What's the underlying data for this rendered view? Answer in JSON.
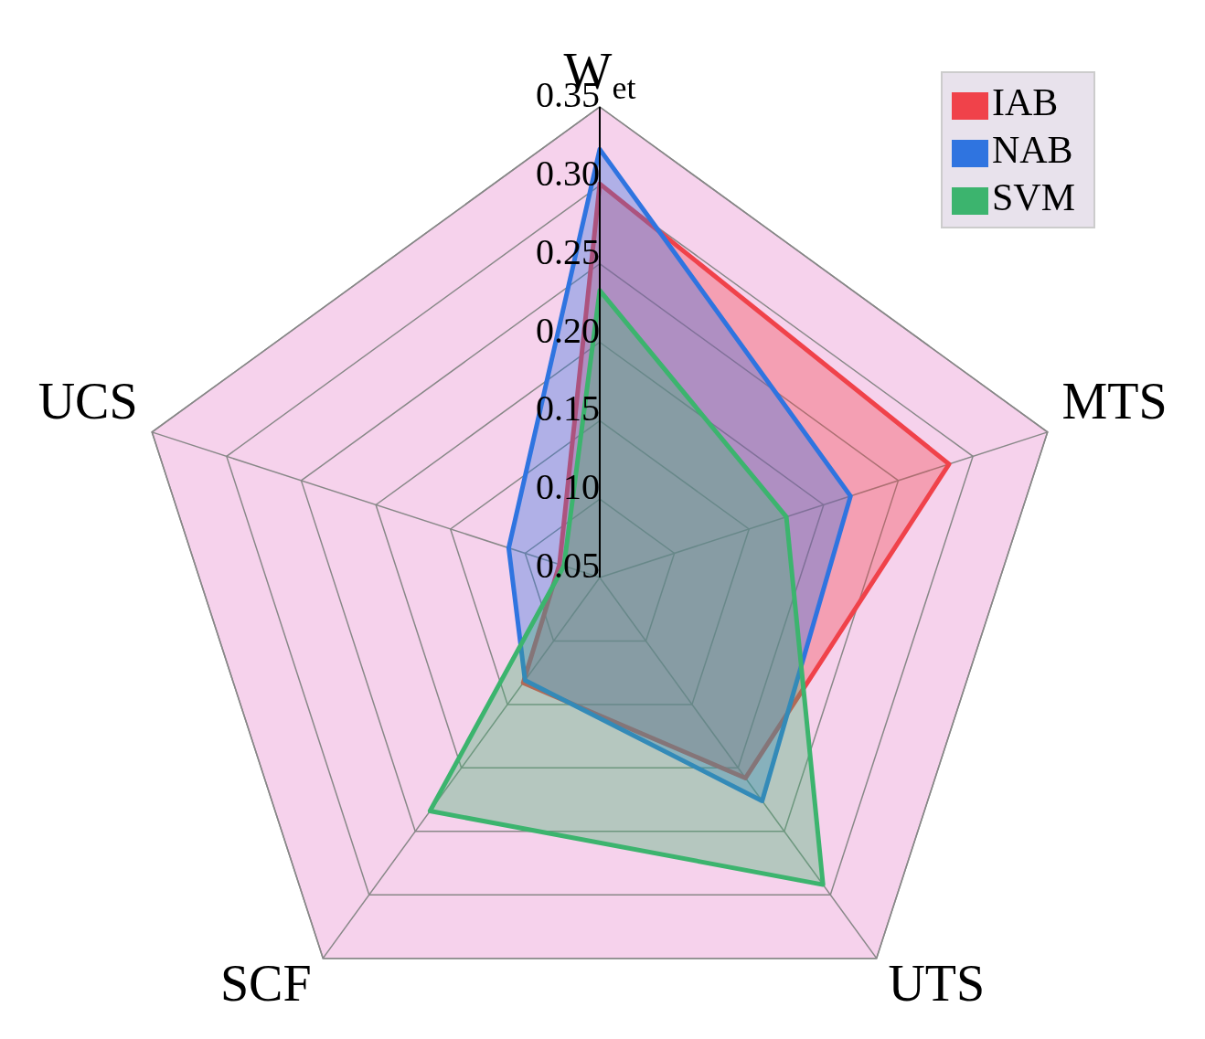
{
  "chart_data": {
    "type": "radar",
    "categories": [
      "W$_{et}$",
      "MTS",
      "UTS",
      "SCF",
      "UCS"
    ],
    "series": [
      {
        "name": "IAB",
        "color": "#f0424a",
        "values": [
          0.301,
          0.284,
          0.208,
          0.133,
          0.077
        ]
      },
      {
        "name": "NAB",
        "color": "#2f74e0",
        "values": [
          0.323,
          0.218,
          0.226,
          0.131,
          0.111
        ]
      },
      {
        "name": "SVM",
        "color": "#3cb46e",
        "values": [
          0.233,
          0.175,
          0.292,
          0.234,
          0.074
        ]
      }
    ],
    "ylim": [
      0.05,
      0.35
    ],
    "yticks": [
      {
        "value": 0.05,
        "label": "0.05"
      },
      {
        "value": 0.1,
        "label": "0.10"
      },
      {
        "value": 0.15,
        "label": "0.15"
      },
      {
        "value": 0.2,
        "label": "0.20"
      },
      {
        "value": 0.25,
        "label": "0.25"
      },
      {
        "value": 0.3,
        "label": "0.30"
      },
      {
        "value": 0.35,
        "label": "0.35"
      }
    ],
    "grid": true,
    "legend": "top right"
  }
}
